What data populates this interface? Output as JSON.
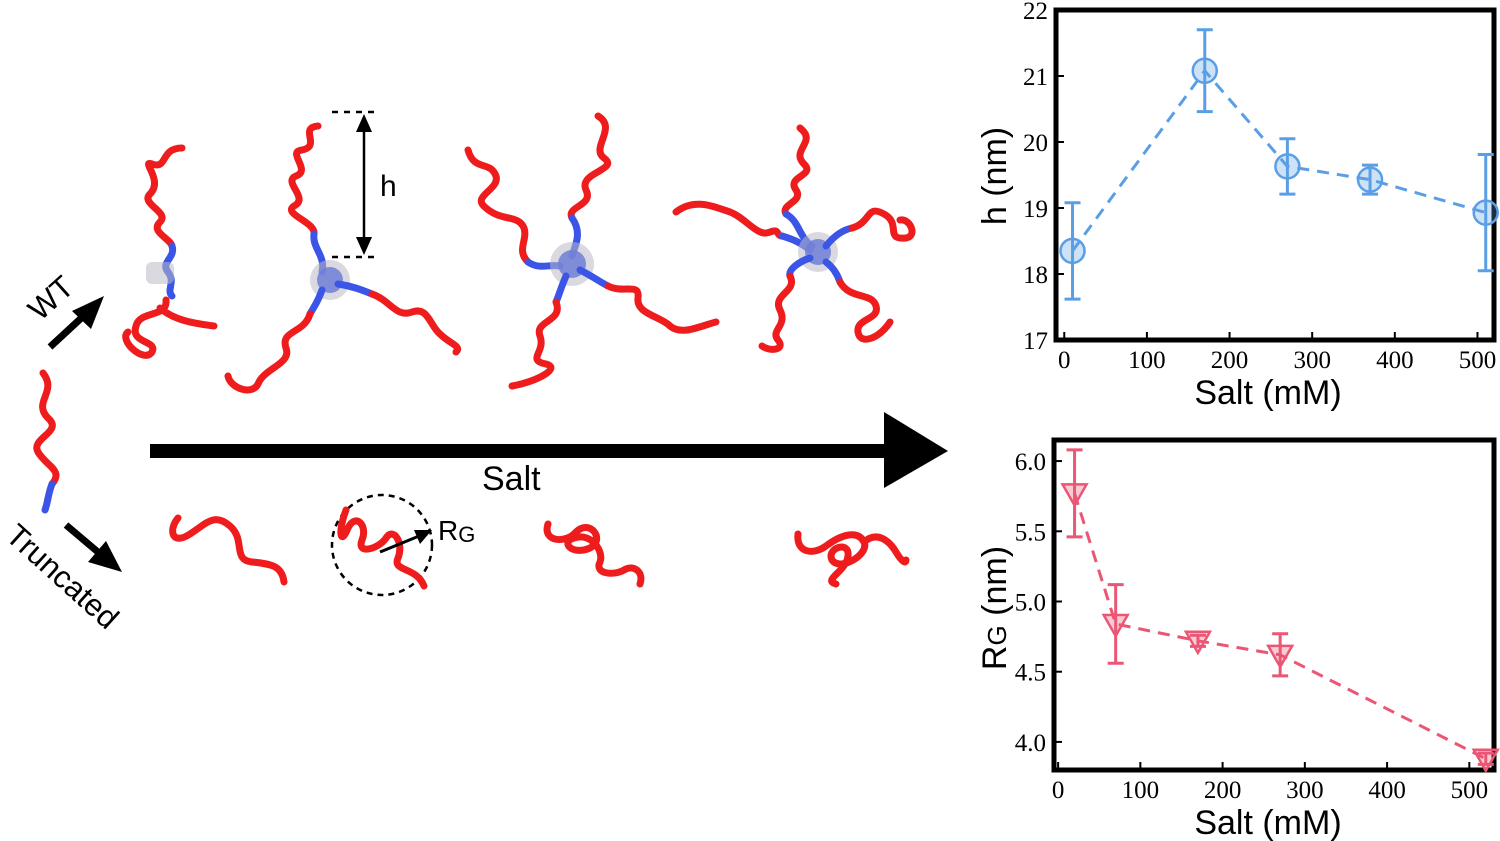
{
  "labels": {
    "wt": "WT",
    "truncated": "Truncated",
    "salt_arrow": "Salt",
    "h_marker": "h",
    "rg_marker_main": "R",
    "rg_marker_sub": "G"
  },
  "colors": {
    "red_chain": "#ee1c1c",
    "blue_chain": "#3b55e6",
    "h_series": "#5a9fe6",
    "rg_series": "#ea5673"
  },
  "chart_data": [
    {
      "type": "line",
      "xlabel": "Salt (mM)",
      "ylabel": "h (nm)",
      "xlim": [
        -10,
        520
      ],
      "ylim": [
        17,
        22
      ],
      "xticks": [
        0,
        100,
        200,
        300,
        400,
        500
      ],
      "yticks": [
        17,
        18,
        19,
        20,
        21,
        22
      ],
      "marker": "circle",
      "line_style": "dashed",
      "color": "#5a9fe6",
      "x": [
        10,
        170,
        270,
        370,
        510
      ],
      "y": [
        18.35,
        21.08,
        19.63,
        19.43,
        18.93
      ],
      "err": [
        0.73,
        0.62,
        0.42,
        0.22,
        0.88
      ]
    },
    {
      "type": "line",
      "xlabel": "Salt (mM)",
      "ylabel_main": "R",
      "ylabel_sub": "G",
      "ylabel_rest": " (nm)",
      "xlim": [
        -5,
        530
      ],
      "ylim": [
        3.8,
        6.15
      ],
      "xticks": [
        0,
        100,
        200,
        300,
        400,
        500
      ],
      "yticks": [
        4.0,
        4.5,
        5.0,
        5.5,
        6.0
      ],
      "ytick_labels": [
        "4.0",
        "4.5",
        "5.0",
        "5.5",
        "6.0"
      ],
      "marker": "triangle-down",
      "line_style": "dashed",
      "color": "#ea5673",
      "x": [
        20,
        70,
        170,
        270,
        520
      ],
      "y": [
        5.77,
        4.84,
        4.72,
        4.62,
        3.88
      ],
      "err": [
        0.31,
        0.28,
        0.04,
        0.15,
        0.04
      ]
    }
  ]
}
